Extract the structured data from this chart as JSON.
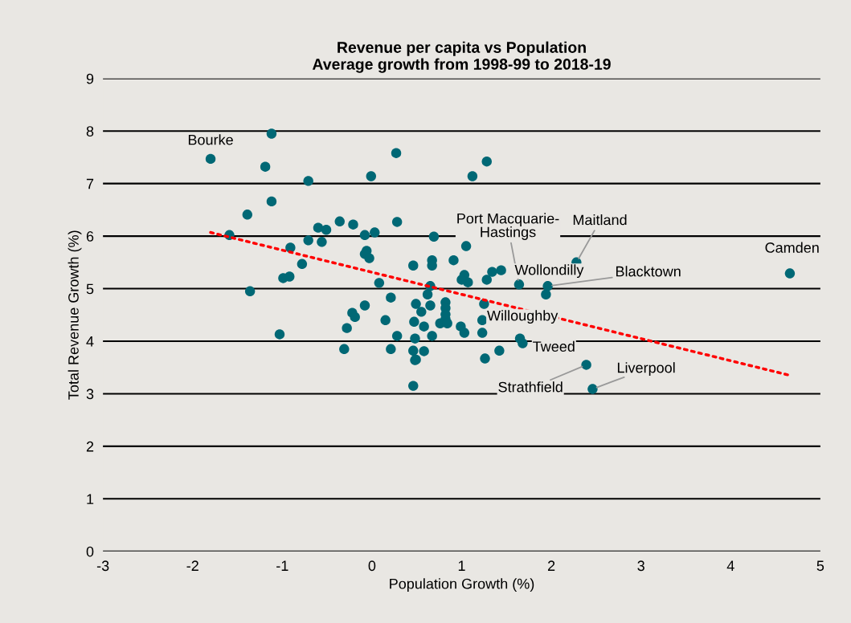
{
  "chart_data": {
    "type": "scatter",
    "title": "Revenue per capita vs Population\nAverage growth from 1998-99 to 2018-19",
    "xlabel": "Population Growth (%)",
    "ylabel": "Total Revenue Growth (%)",
    "xlim": [
      -3,
      5
    ],
    "xticks": [
      -3,
      -2,
      -1,
      0,
      1,
      2,
      3,
      4,
      5
    ],
    "ylim": [
      0,
      9
    ],
    "yticks": [
      0,
      1,
      2,
      3,
      4,
      5,
      6,
      7,
      8,
      9
    ],
    "grid": "y",
    "marker": "circle",
    "series": [
      {
        "color": "#006875",
        "x": [
          -1.8,
          -1.12,
          -1.19,
          -0.71,
          -0.01,
          0.27,
          1.28,
          1.12,
          -1.12,
          -1.39,
          -0.36,
          -0.21,
          0.28,
          -0.6,
          -0.51,
          -0.08,
          0.03,
          -1.59,
          -0.71,
          -0.56,
          -0.91,
          -0.06,
          -0.08,
          -0.03,
          -0.78,
          0.46,
          -0.99,
          -0.92,
          0.08,
          -1.36,
          0.21,
          -0.08,
          -0.22,
          -0.19,
          0.15,
          -0.28,
          0.28,
          -1.03,
          -0.31,
          0.21,
          0.46,
          0.49,
          0.47,
          0.48,
          0.46,
          0.48,
          0.69,
          1.05,
          0.67,
          0.67,
          0.91,
          1.03,
          1.07,
          1.0,
          1.28,
          1.34,
          1.44,
          1.64,
          2.28,
          1.96,
          1.94,
          0.65,
          0.62,
          0.65,
          0.55,
          0.82,
          0.82,
          0.82,
          0.82,
          0.76,
          0.84,
          0.58,
          0.99,
          1.03,
          1.25,
          1.23,
          1.23,
          1.65,
          1.68,
          0.67,
          0.58,
          0.49,
          1.42,
          1.26,
          2.39,
          2.46,
          4.66
        ],
        "values": [
          7.47,
          7.95,
          7.32,
          7.05,
          7.14,
          7.58,
          7.42,
          7.14,
          6.66,
          6.41,
          6.28,
          6.22,
          6.27,
          6.16,
          6.12,
          6.02,
          6.07,
          6.02,
          5.92,
          5.89,
          5.78,
          5.72,
          5.66,
          5.58,
          5.47,
          5.44,
          5.2,
          5.23,
          5.11,
          4.95,
          4.83,
          4.68,
          4.54,
          4.46,
          4.4,
          4.25,
          4.1,
          4.13,
          3.85,
          3.85,
          3.15,
          4.71,
          4.37,
          4.05,
          3.82,
          3.64,
          5.99,
          5.81,
          5.54,
          5.44,
          5.54,
          5.26,
          5.12,
          5.17,
          5.17,
          5.32,
          5.35,
          5.08,
          5.5,
          5.05,
          4.89,
          5.05,
          4.89,
          4.68,
          4.56,
          4.74,
          4.63,
          4.51,
          4.42,
          4.34,
          4.34,
          4.28,
          4.28,
          4.16,
          4.71,
          4.4,
          4.16,
          4.05,
          3.96,
          4.1,
          3.81,
          3.65,
          3.82,
          3.67,
          3.55,
          3.09,
          5.29
        ]
      },
      {
        "type": "line",
        "color": "#ff0000",
        "line_style": "dotted",
        "marker": "none",
        "x": [
          -1.8,
          4.66
        ],
        "values": [
          6.07,
          3.35
        ]
      }
    ],
    "annotations": [
      {
        "text": "Bourke",
        "x": -1.8,
        "y": 7.47
      },
      {
        "text": "Port Macquarie-\nHastings",
        "x": 1.64,
        "y": 5.08
      },
      {
        "text": "Maitland",
        "x": 2.28,
        "y": 5.5
      },
      {
        "text": "Wollondilly",
        "x": 1.64,
        "y": 5.08
      },
      {
        "text": "Blacktown",
        "x": 1.96,
        "y": 5.05
      },
      {
        "text": "Camden",
        "x": 4.66,
        "y": 5.29
      },
      {
        "text": "Willoughby",
        "x": 1.23,
        "y": 4.4
      },
      {
        "text": "Tweed",
        "x": 1.68,
        "y": 3.96
      },
      {
        "text": "Strathfield",
        "x": 2.39,
        "y": 3.55
      },
      {
        "text": "Liverpool",
        "x": 2.46,
        "y": 3.09
      }
    ]
  }
}
